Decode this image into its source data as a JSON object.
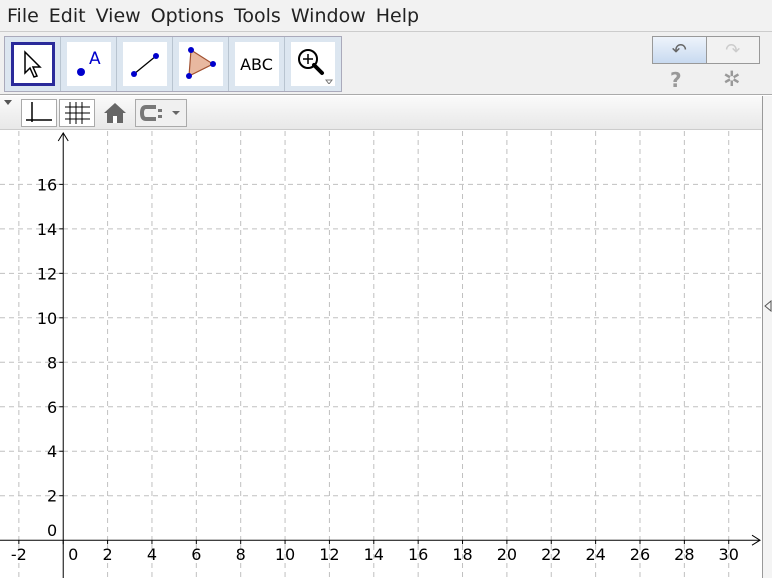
{
  "menu": [
    "File",
    "Edit",
    "View",
    "Options",
    "Tools",
    "Window",
    "Help"
  ],
  "toolbar": {
    "tools": [
      {
        "name": "move-tool",
        "icon": "arrow-cursor-icon",
        "selected": true
      },
      {
        "name": "point-tool",
        "icon": "point-icon",
        "label": "A"
      },
      {
        "name": "segment-tool",
        "icon": "segment-icon"
      },
      {
        "name": "polygon-tool",
        "icon": "polygon-icon"
      },
      {
        "name": "text-tool",
        "icon": "text-icon",
        "label": "ABC"
      },
      {
        "name": "zoom-tool",
        "icon": "zoom-in-icon"
      }
    ],
    "undo_icon": "↶",
    "redo_icon": "↷",
    "help_icon": "?",
    "settings_icon": "✲"
  },
  "stylebar": {
    "axes_toggle": "axes-icon",
    "grid_toggle": "grid-icon",
    "home": "home-icon",
    "point_capture": "point-capture-icon"
  },
  "graphics": {
    "x_ticks": [
      -2,
      0,
      2,
      4,
      6,
      8,
      10,
      12,
      14,
      16,
      18,
      20,
      22,
      24,
      26,
      28,
      30
    ],
    "y_ticks": [
      0,
      2,
      4,
      6,
      8,
      10,
      12,
      14,
      16
    ],
    "xlim": [
      -2.85,
      31.5
    ],
    "ylim": [
      -1.7,
      18.4
    ],
    "grid": true,
    "axis_color": "#000000",
    "grid_color": "#c0c0c0"
  }
}
